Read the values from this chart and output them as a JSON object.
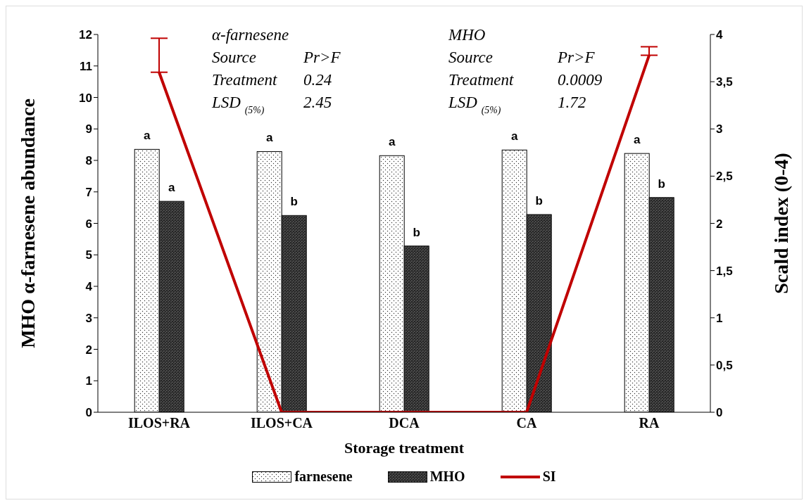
{
  "chart_data": {
    "type": "bar",
    "xlabel": "Storage treatment",
    "ylabel": "MHO α-farnesene abundance",
    "y2label": "Scald index (0-4)",
    "categories": [
      "ILOS+RA",
      "ILOS+CA",
      "DCA",
      "CA",
      "RA"
    ],
    "series": [
      {
        "name": "farnesene",
        "color": "#ffffff",
        "values": [
          8.35,
          8.28,
          8.15,
          8.33,
          8.22
        ],
        "value_labels": [
          "a",
          "a",
          "a",
          "a",
          "a"
        ]
      },
      {
        "name": "MHO",
        "color": "#555555",
        "values": [
          6.7,
          6.25,
          5.28,
          6.28,
          6.82
        ],
        "value_labels": [
          "a",
          "b",
          "b",
          "b",
          "b"
        ]
      },
      {
        "name": "SI",
        "type": "line",
        "axis": "y2",
        "color": "#c00000",
        "values": [
          3.6,
          0,
          0,
          0,
          3.78
        ],
        "errors": [
          [
            3.6,
            3.96
          ],
          null,
          null,
          null,
          [
            3.78,
            3.87
          ]
        ]
      }
    ],
    "ylim": [
      0,
      12
    ],
    "yticks": [
      0,
      1,
      2,
      3,
      4,
      5,
      6,
      7,
      8,
      9,
      10,
      11,
      12
    ],
    "y2lim": [
      0,
      4
    ],
    "y2ticks": [
      0,
      {
        "value": 0.5,
        "label": "0,5"
      },
      1,
      {
        "value": 1.5,
        "label": "1,5"
      },
      2,
      {
        "value": 2.5,
        "label": "2,5"
      },
      3,
      {
        "value": 3.5,
        "label": "3,5"
      },
      4
    ],
    "grid": false,
    "legend": "bottom",
    "marker": "none",
    "line_style": "solid",
    "annotations": [
      "α-farnesene",
      "Source",
      "Pr>F",
      "Treatment",
      "0.24",
      "LSD $_{(5%)}$",
      "2.45",
      "MHO",
      "Source",
      "Pr>F",
      "Treatment",
      "0.0009",
      "LSD $_{(5%)}$",
      "1.72"
    ]
  }
}
